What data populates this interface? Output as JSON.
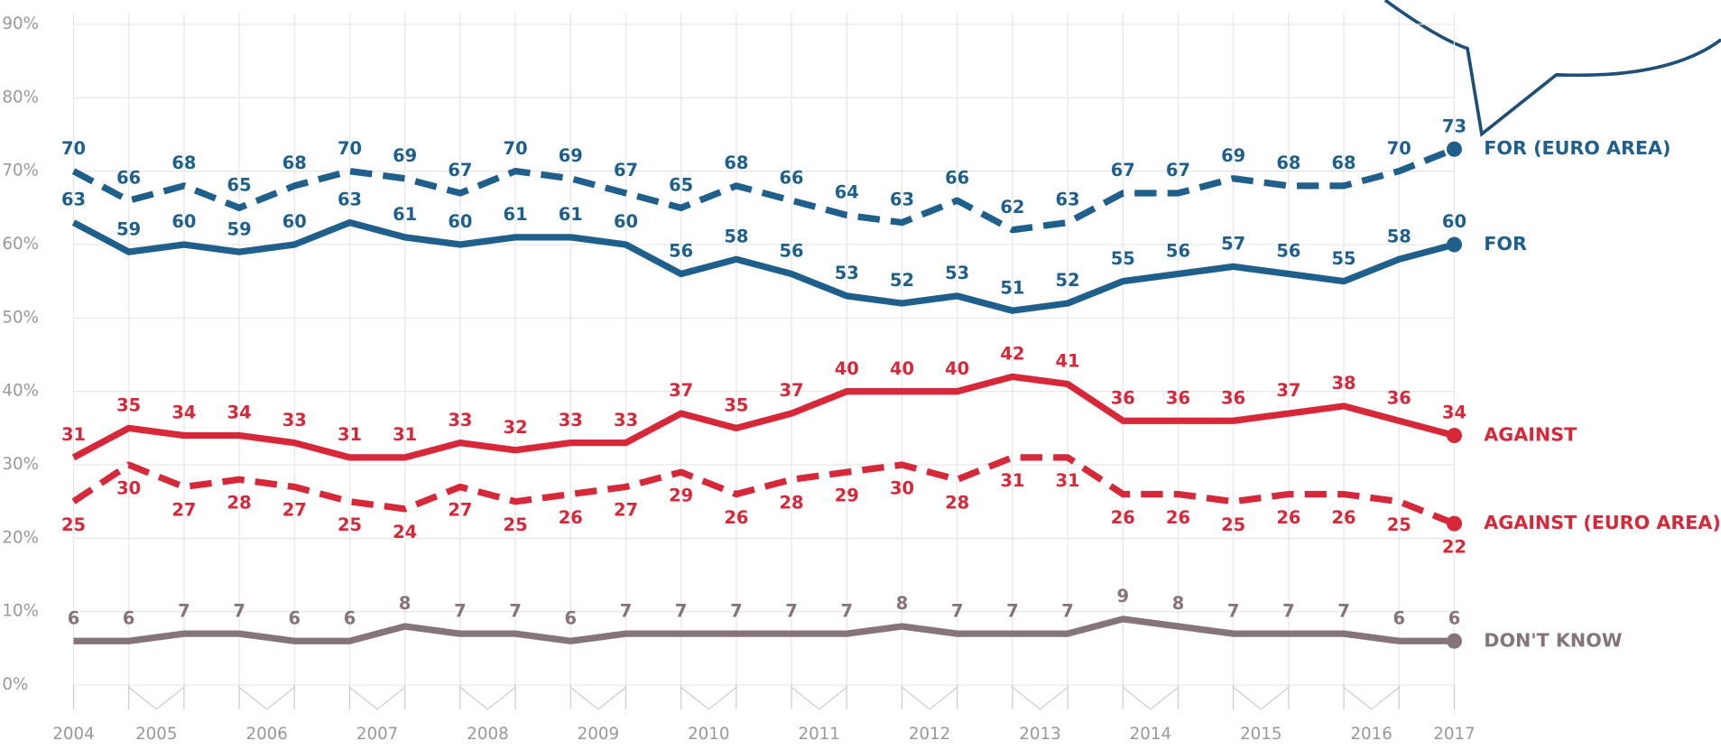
{
  "chart_data": {
    "type": "line",
    "x_labels": [
      "2004",
      "2005",
      "2006",
      "2007",
      "2008",
      "2009",
      "2010",
      "2011",
      "2012",
      "2013",
      "2014",
      "2015",
      "2016",
      "2017"
    ],
    "ylim": [
      0,
      90
    ],
    "yticks": [
      {
        "value": 0,
        "label": "0%"
      },
      {
        "value": 10,
        "label": "10%"
      },
      {
        "value": 20,
        "label": "20%"
      },
      {
        "value": 30,
        "label": "30%"
      },
      {
        "value": 40,
        "label": "40%"
      },
      {
        "value": 50,
        "label": "50%"
      },
      {
        "value": 60,
        "label": "60%"
      },
      {
        "value": 70,
        "label": "70%"
      },
      {
        "value": 80,
        "label": "80%"
      },
      {
        "value": 90,
        "label": "90%"
      }
    ],
    "grid": true,
    "series": [
      {
        "name": "FOR (EURO AREA)",
        "color": "#1f5f8b",
        "dashed": true,
        "values": [
          70,
          66,
          68,
          65,
          68,
          70,
          69,
          67,
          70,
          69,
          67,
          65,
          68,
          66,
          64,
          63,
          66,
          62,
          63,
          67,
          67,
          69,
          68,
          68,
          70,
          73
        ]
      },
      {
        "name": "FOR",
        "color": "#1f5f8b",
        "dashed": false,
        "values": [
          63,
          59,
          60,
          59,
          60,
          63,
          61,
          60,
          61,
          61,
          60,
          56,
          58,
          56,
          53,
          52,
          53,
          51,
          52,
          55,
          56,
          57,
          56,
          55,
          58,
          60
        ]
      },
      {
        "name": "AGAINST",
        "color": "#d62839",
        "dashed": false,
        "values": [
          31,
          35,
          34,
          34,
          33,
          31,
          31,
          33,
          32,
          33,
          33,
          37,
          35,
          37,
          40,
          40,
          40,
          42,
          41,
          36,
          36,
          36,
          37,
          38,
          36,
          34
        ]
      },
      {
        "name": "AGAINST (EURO AREA)",
        "color": "#d62839",
        "dashed": true,
        "values": [
          25,
          30,
          27,
          28,
          27,
          25,
          24,
          27,
          25,
          26,
          27,
          29,
          26,
          28,
          29,
          30,
          28,
          31,
          31,
          26,
          26,
          25,
          26,
          26,
          25,
          22
        ]
      },
      {
        "name": "DON'T KNOW",
        "color": "#857479",
        "dashed": false,
        "values": [
          6,
          6,
          7,
          7,
          6,
          6,
          8,
          7,
          7,
          6,
          7,
          7,
          7,
          7,
          7,
          8,
          7,
          7,
          7,
          9,
          8,
          7,
          7,
          7,
          6,
          6
        ]
      }
    ]
  }
}
